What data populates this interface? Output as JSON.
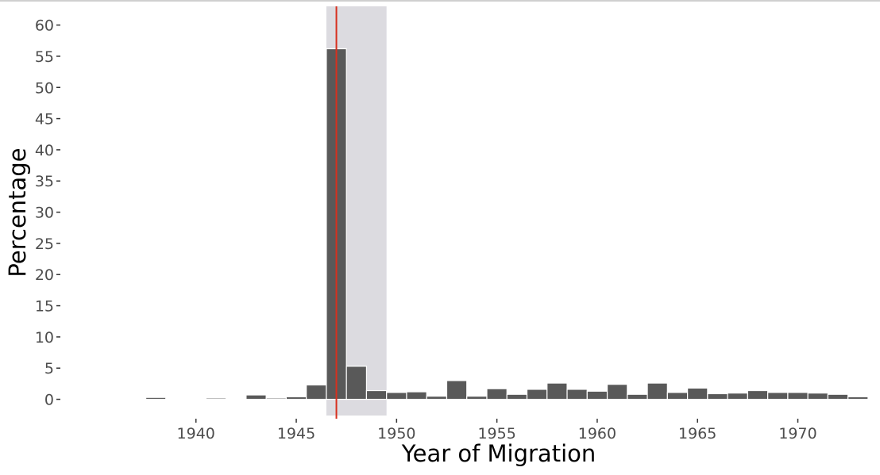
{
  "chart_data": {
    "type": "bar",
    "title": "",
    "xlabel": "Year of Migration",
    "ylabel": "Percentage",
    "xlim": [
      1935.3,
      1973.7
    ],
    "ylim": [
      -2.6,
      63
    ],
    "x_ticks": [
      1940,
      1945,
      1950,
      1955,
      1960,
      1965,
      1970
    ],
    "y_ticks": [
      0,
      5,
      10,
      15,
      20,
      25,
      30,
      35,
      40,
      45,
      50,
      55,
      60
    ],
    "grid": false,
    "legend": "none",
    "bar_color": "#595959",
    "bar_outline": "#ffffff",
    "highlight_band": {
      "from": 1946.5,
      "to": 1949.5,
      "color": "#dcdbe0"
    },
    "reference_line": {
      "x": 1947,
      "color": "#d7301f"
    },
    "x": [
      1936,
      1937,
      1938,
      1939,
      1940,
      1941,
      1942,
      1943,
      1944,
      1945,
      1946,
      1947,
      1948,
      1949,
      1950,
      1951,
      1952,
      1953,
      1954,
      1955,
      1956,
      1957,
      1958,
      1959,
      1960,
      1961,
      1962,
      1963,
      1964,
      1965,
      1966,
      1967,
      1968,
      1969,
      1970,
      1971,
      1972,
      1973
    ],
    "values": [
      0.1,
      0.15,
      0.3,
      0.1,
      0.1,
      0.2,
      0.15,
      0.7,
      0.2,
      0.4,
      2.3,
      56.2,
      5.3,
      1.4,
      1.1,
      1.2,
      0.5,
      3.0,
      0.5,
      1.7,
      0.8,
      1.6,
      2.6,
      1.6,
      1.3,
      2.4,
      0.8,
      2.6,
      1.1,
      1.8,
      0.9,
      1.0,
      1.4,
      1.1,
      1.1,
      1.0,
      0.8,
      0.4
    ]
  }
}
